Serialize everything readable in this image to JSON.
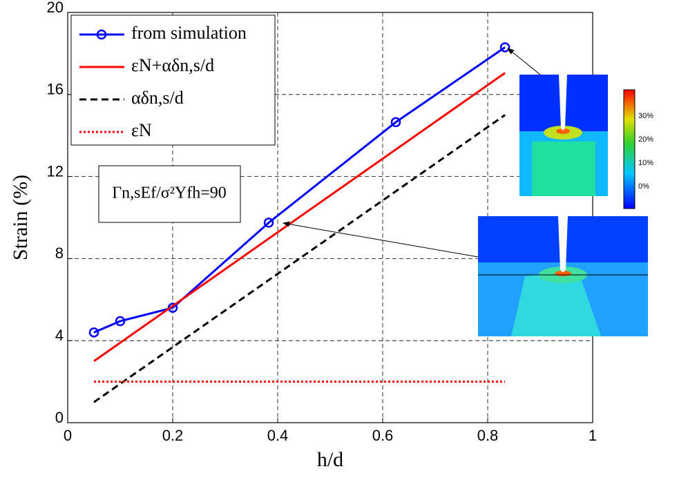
{
  "chart_data": {
    "type": "line",
    "xlabel": "h/d",
    "ylabel": "Strain (%)",
    "xlim": [
      0,
      1
    ],
    "ylim": [
      0,
      20
    ],
    "xticks": [
      0,
      0.2,
      0.4,
      0.6,
      0.8,
      1
    ],
    "yticks": [
      0,
      4,
      8,
      12,
      16,
      20
    ],
    "grid": true,
    "legend": "upper left",
    "annotation": "Γn,sEf/σ²Yfh=90",
    "series": [
      {
        "name": "from simulation",
        "color": "#0000ff",
        "style": "solid",
        "marker": "circle",
        "x": [
          0.05,
          0.1,
          0.2,
          0.383,
          0.625,
          0.833
        ],
        "values": [
          4.4,
          4.95,
          5.6,
          9.75,
          14.65,
          18.3
        ]
      },
      {
        "name": "εN+αδn,s/d",
        "color": "#ff0000",
        "style": "solid",
        "x": [
          0.05,
          0.833
        ],
        "values": [
          3.0,
          17.05
        ]
      },
      {
        "name": "αδn,s/d",
        "color": "#000000",
        "style": "dashed",
        "x": [
          0.05,
          0.833
        ],
        "values": [
          1.0,
          15.0
        ]
      },
      {
        "name": "εN",
        "color": "#ff0000",
        "style": "dotted",
        "x": [
          0.05,
          0.833
        ],
        "values": [
          2.0,
          2.0
        ]
      }
    ],
    "colorbar_labels": [
      "30%",
      "20%",
      "10%",
      "0%"
    ]
  }
}
